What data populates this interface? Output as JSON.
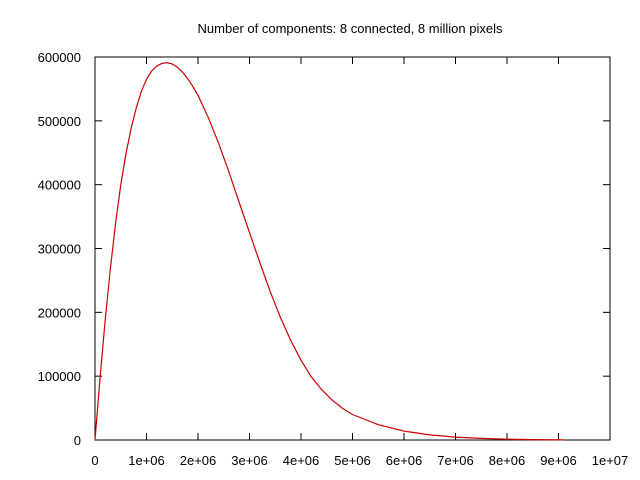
{
  "chart_data": {
    "type": "line",
    "title": "Number of components: 8 connected, 8 million pixels",
    "xlabel": "",
    "ylabel": "",
    "xlim": [
      0,
      10000000
    ],
    "ylim": [
      0,
      600000
    ],
    "grid": false,
    "x_ticks": [
      {
        "value": 0,
        "label": "0"
      },
      {
        "value": 1000000,
        "label": "1e+06"
      },
      {
        "value": 2000000,
        "label": "2e+06"
      },
      {
        "value": 3000000,
        "label": "3e+06"
      },
      {
        "value": 4000000,
        "label": "4e+06"
      },
      {
        "value": 5000000,
        "label": "5e+06"
      },
      {
        "value": 6000000,
        "label": "6e+06"
      },
      {
        "value": 7000000,
        "label": "7e+06"
      },
      {
        "value": 8000000,
        "label": "8e+06"
      },
      {
        "value": 9000000,
        "label": "9e+06"
      },
      {
        "value": 10000000,
        "label": "1e+07"
      }
    ],
    "y_ticks": [
      {
        "value": 0,
        "label": "0"
      },
      {
        "value": 100000,
        "label": "100000"
      },
      {
        "value": 200000,
        "label": "200000"
      },
      {
        "value": 300000,
        "label": "300000"
      },
      {
        "value": 400000,
        "label": "400000"
      },
      {
        "value": 500000,
        "label": "500000"
      },
      {
        "value": 600000,
        "label": "600000"
      }
    ],
    "series": [
      {
        "color": "#cc0000",
        "x": [
          0,
          100000,
          200000,
          300000,
          400000,
          500000,
          600000,
          700000,
          800000,
          900000,
          1000000,
          1100000,
          1200000,
          1300000,
          1400000,
          1500000,
          1600000,
          1700000,
          1800000,
          1900000,
          2000000,
          2200000,
          2400000,
          2600000,
          2800000,
          3000000,
          3200000,
          3400000,
          3600000,
          3800000,
          4000000,
          4200000,
          4400000,
          4600000,
          4800000,
          5000000,
          5500000,
          6000000,
          6500000,
          7000000,
          7500000,
          8000000,
          8500000,
          9000000,
          9100000
        ],
        "y": [
          0,
          100000,
          190000,
          270000,
          340000,
          400000,
          448000,
          488000,
          520000,
          546000,
          565000,
          578000,
          586000,
          590000,
          591000,
          589000,
          584000,
          576000,
          566000,
          554000,
          540000,
          505000,
          465000,
          420000,
          372000,
          325000,
          278000,
          233000,
          192000,
          156000,
          125000,
          99000,
          79000,
          63000,
          50000,
          40000,
          24000,
          14000,
          8000,
          4500,
          2500,
          1300,
          700,
          300,
          200
        ]
      }
    ]
  }
}
